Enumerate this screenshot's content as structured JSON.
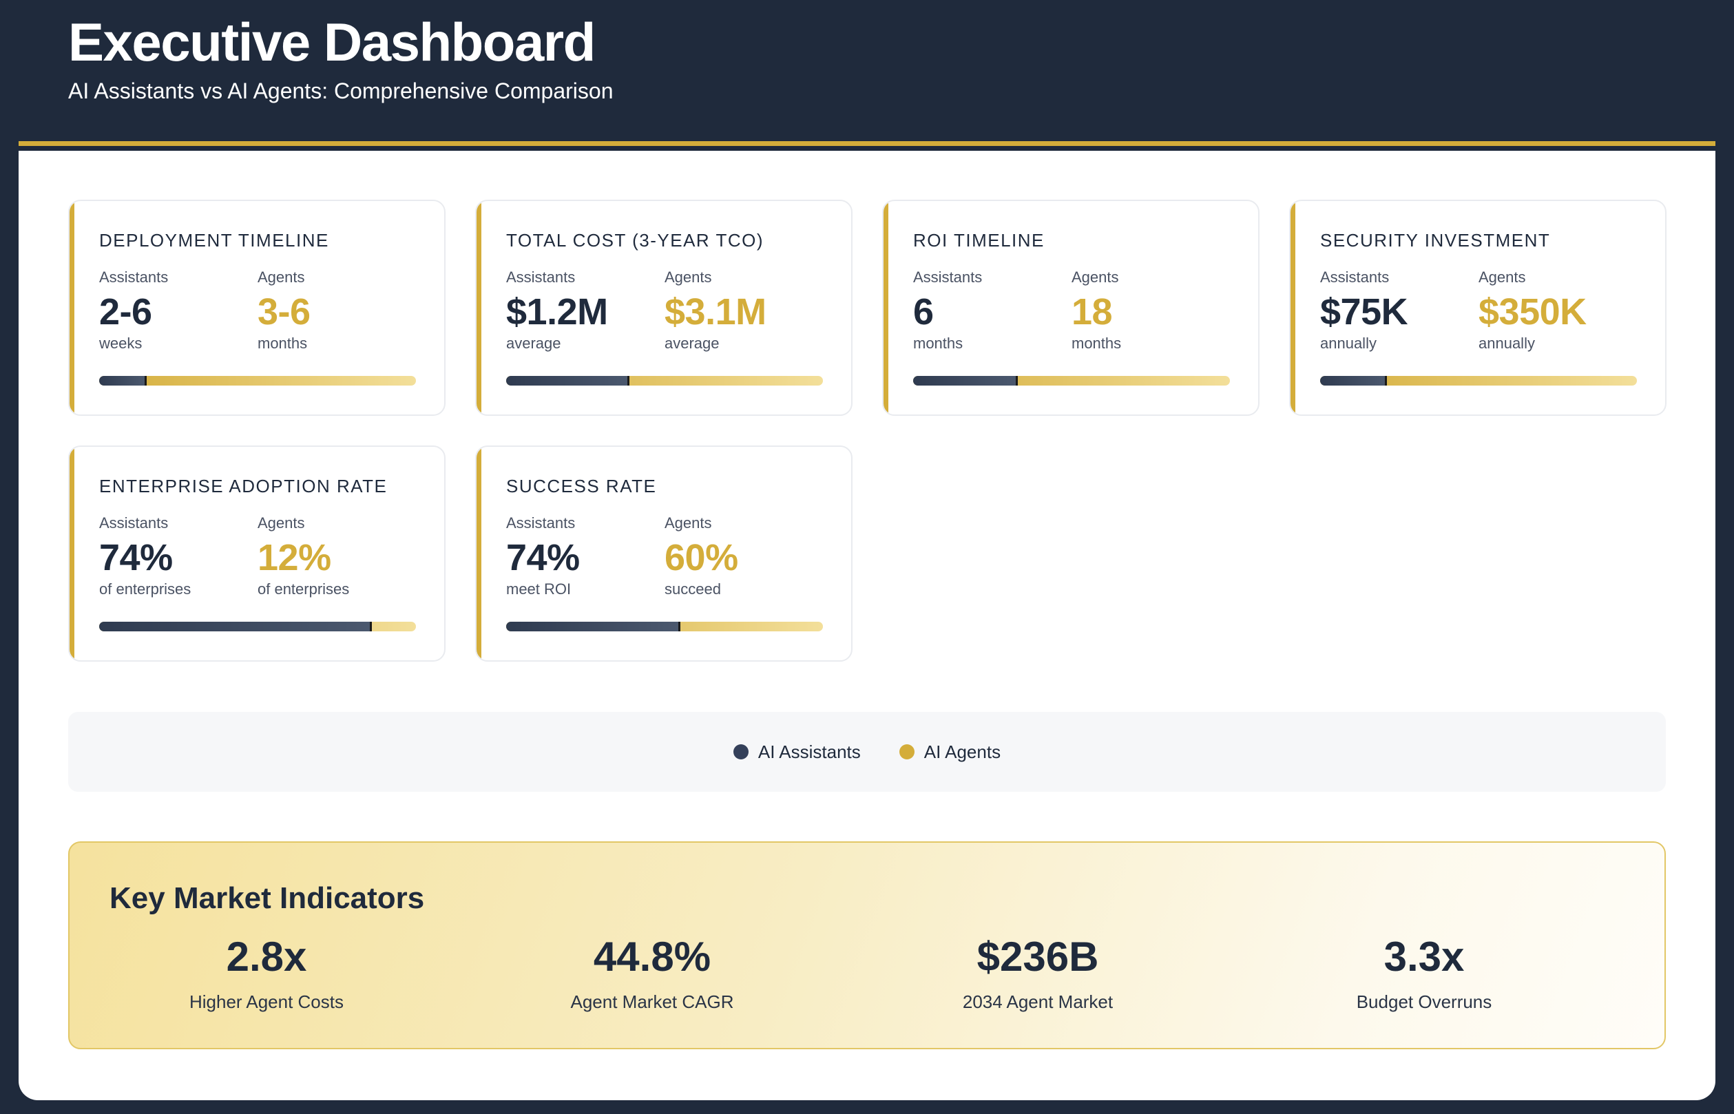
{
  "header": {
    "title": "Executive Dashboard",
    "subtitle": "AI Assistants vs AI Agents: Comprehensive Comparison"
  },
  "cards": [
    {
      "title": "DEPLOYMENT TIMELINE",
      "a_label": "Assistants",
      "a_value": "2-6",
      "a_unit": "weeks",
      "b_label": "Agents",
      "b_value": "3-6",
      "b_unit": "months",
      "ratio": 0.15
    },
    {
      "title": "TOTAL COST (3-YEAR TCO)",
      "a_label": "Assistants",
      "a_value": "$1.2M",
      "a_unit": "average",
      "b_label": "Agents",
      "b_value": "$3.1M",
      "b_unit": "average",
      "ratio": 0.39
    },
    {
      "title": "ROI TIMELINE",
      "a_label": "Assistants",
      "a_value": "6",
      "a_unit": "months",
      "b_label": "Agents",
      "b_value": "18",
      "b_unit": "months",
      "ratio": 0.33
    },
    {
      "title": "SECURITY INVESTMENT",
      "a_label": "Assistants",
      "a_value": "$75K",
      "a_unit": "annually",
      "b_label": "Agents",
      "b_value": "$350K",
      "b_unit": "annually",
      "ratio": 0.21
    },
    {
      "title": "ENTERPRISE ADOPTION RATE",
      "a_label": "Assistants",
      "a_value": "74%",
      "a_unit": "of enterprises",
      "b_label": "Agents",
      "b_value": "12%",
      "b_unit": "of enterprises",
      "ratio": 0.86
    },
    {
      "title": "SUCCESS RATE",
      "a_label": "Assistants",
      "a_value": "74%",
      "a_unit": "meet ROI",
      "b_label": "Agents",
      "b_value": "60%",
      "b_unit": "succeed",
      "ratio": 0.55
    }
  ],
  "legend": {
    "assistants_label": "AI Assistants",
    "agents_label": "AI Agents",
    "assistants_color": "#34405a",
    "agents_color": "#d4ad3a"
  },
  "kmi": {
    "title": "Key Market Indicators",
    "items": [
      {
        "value": "2.8x",
        "label": "Higher Agent Costs"
      },
      {
        "value": "44.8%",
        "label": "Agent Market CAGR"
      },
      {
        "value": "$236B",
        "label": "2034 Agent Market"
      },
      {
        "value": "3.3x",
        "label": "Budget Overruns"
      }
    ]
  }
}
